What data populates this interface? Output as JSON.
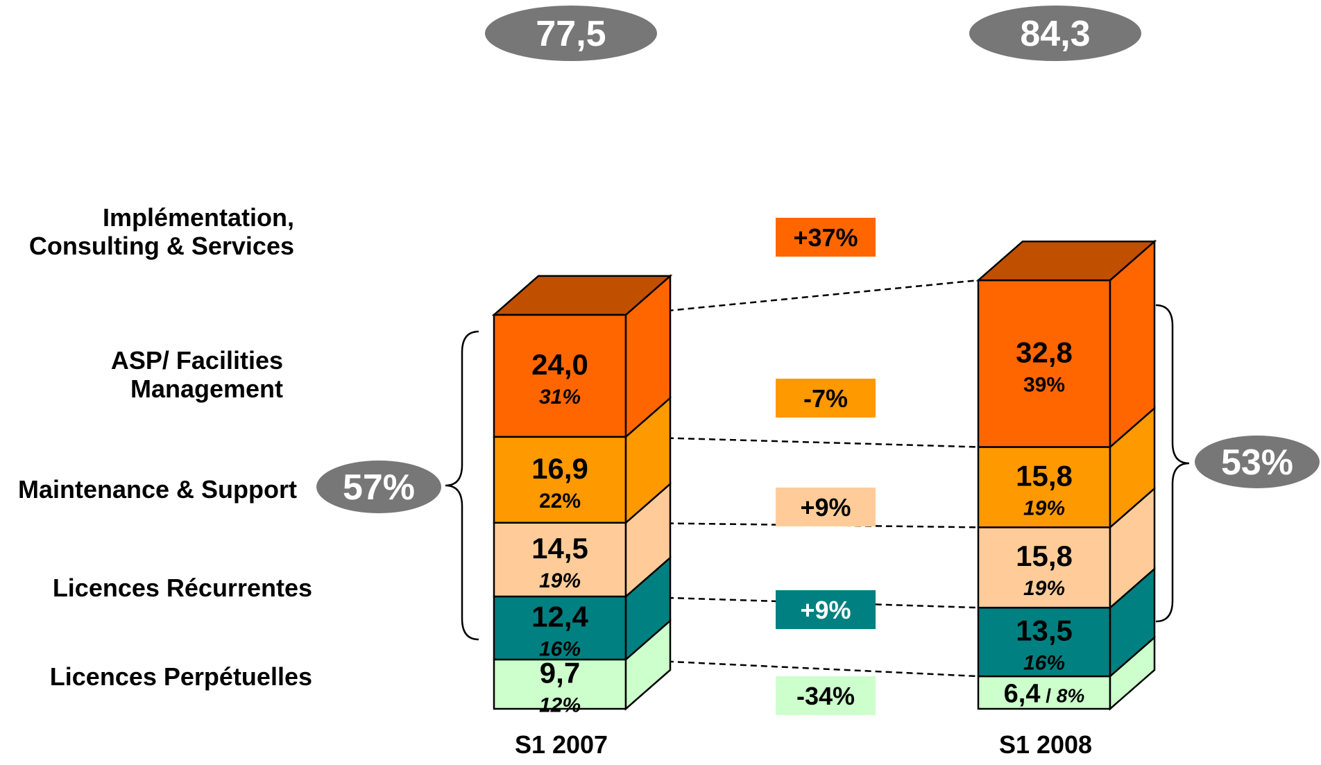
{
  "chart_data": {
    "type": "bar",
    "stacked": true,
    "categories": [
      "S1 2007",
      "S1 2008"
    ],
    "series": [
      {
        "name": "Licences Perpétuelles",
        "values": [
          9.7,
          6.4
        ],
        "labels": [
          "9,7",
          "6,4"
        ],
        "shares": [
          "12%",
          "8%"
        ],
        "change": "-34%",
        "color": "#ccffcc"
      },
      {
        "name": "Licences Récurrentes",
        "values": [
          12.4,
          13.5
        ],
        "labels": [
          "12,4",
          "13,5"
        ],
        "shares": [
          "16%",
          "16%"
        ],
        "change": "+9%",
        "color": "#008080"
      },
      {
        "name": "Maintenance & Support",
        "values": [
          14.5,
          15.8
        ],
        "labels": [
          "14,5",
          "15,8"
        ],
        "shares": [
          "19%",
          "19%"
        ],
        "change": "+9%",
        "color": "#ffcc99"
      },
      {
        "name": "ASP/ Facilities Management",
        "values": [
          16.9,
          15.8
        ],
        "labels": [
          "16,9",
          "15,8"
        ],
        "shares": [
          "22%",
          "19%"
        ],
        "change": "-7%",
        "color": "#ff9900"
      },
      {
        "name": "Implémentation, Consulting & Services",
        "values": [
          24.0,
          32.8
        ],
        "labels": [
          "24,0",
          "32,8"
        ],
        "shares": [
          "31%",
          "39%"
        ],
        "change": "+37%",
        "color": "#ff6600"
      }
    ],
    "totals": [
      "77,5",
      "84,3"
    ],
    "group_shares": [
      "57%",
      "53%"
    ],
    "legend": "none",
    "grid": false
  },
  "colors": {
    "bar_top": "#c05000",
    "ellipse": "#777777",
    "border": "#000000"
  }
}
